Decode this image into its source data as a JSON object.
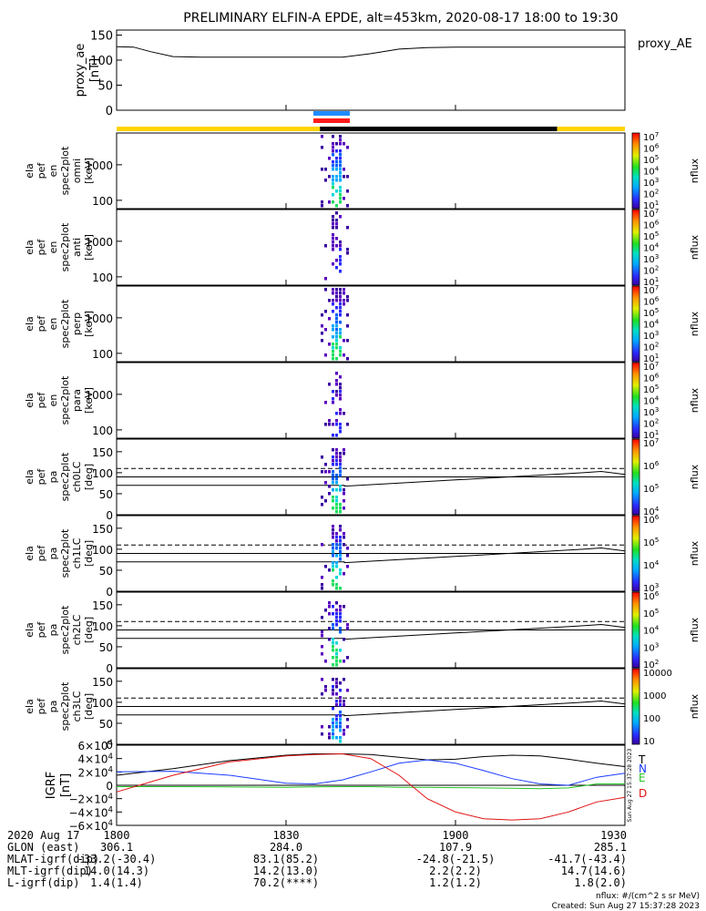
{
  "title": "PRELIMINARY ELFIN-A EPDE, alt=453km, 2020-08-17 18:00 to 19:30",
  "colors": {
    "day": "#ffd400",
    "night": "#000000",
    "blue_bar": "#1e8cff",
    "red_bar": "#ff1a1a",
    "T": "#000000",
    "N": "#1a3cff",
    "E": "#22c422",
    "D": "#e01010"
  },
  "colorbar_ticks": [
    [
      "10^7",
      "10^6",
      "10^5",
      "10^4",
      "10^3",
      "10^2",
      "10^1"
    ],
    [
      "10^7",
      "10^6",
      "10^5",
      "10^4",
      "10^3",
      "10^2",
      "10^1"
    ],
    [
      "10^7",
      "10^6",
      "10^5",
      "10^4",
      "10^3",
      "10^2",
      "10^1"
    ],
    [
      "10^7",
      "10^6",
      "10^5",
      "10^4",
      "10^3",
      "10^2",
      "10^1"
    ],
    [
      "10^7",
      "10^6",
      "10^5",
      "10^4"
    ],
    [
      "10^6",
      "10^5",
      "10^4",
      "10^3"
    ],
    [
      "10^6",
      "10^5",
      "10^4",
      "10^3",
      "10^2"
    ],
    [
      "10000",
      "1000",
      "100",
      "10"
    ]
  ],
  "colorbar_label": "nflux",
  "chart_data": [
    {
      "type": "line",
      "panel": "proxy_ae",
      "ylabel": [
        "proxy_ae",
        "[nT]"
      ],
      "legend": "proxy_AE",
      "yticks": [
        "150",
        "100",
        "50",
        "0"
      ],
      "ylim": [
        0,
        160
      ],
      "x_minutes": [
        0,
        3,
        6,
        10,
        15,
        30,
        40,
        45,
        50,
        55,
        60,
        70,
        80,
        90
      ],
      "values": [
        127,
        126,
        117,
        107,
        106,
        106,
        106,
        113,
        122,
        125,
        126,
        126,
        126,
        126
      ]
    },
    {
      "type": "heatmap",
      "panel": "omni",
      "ylabel": [
        "ela",
        "pef",
        "en",
        "spec2plot",
        "omni",
        "[keV]"
      ],
      "yticks": [
        "1000",
        "100"
      ],
      "scale": "log"
    },
    {
      "type": "heatmap",
      "panel": "anti",
      "ylabel": [
        "ela",
        "pef",
        "en",
        "spec2plot",
        "anti",
        "[keV]"
      ],
      "yticks": [
        "1000",
        "100"
      ],
      "scale": "log"
    },
    {
      "type": "heatmap",
      "panel": "perp",
      "ylabel": [
        "ela",
        "pef",
        "en",
        "spec2plot",
        "perp",
        "[keV]"
      ],
      "yticks": [
        "1000",
        "100"
      ],
      "scale": "log"
    },
    {
      "type": "heatmap",
      "panel": "para",
      "ylabel": [
        "ela",
        "pef",
        "en",
        "spec2plot",
        "para",
        "[keV]"
      ],
      "yticks": [
        "1000",
        "100"
      ],
      "scale": "log"
    },
    {
      "type": "heatmap",
      "panel": "ch0LC",
      "ylabel": [
        "ela",
        "pef",
        "pa",
        "spec2plot",
        "ch0LC",
        "[deg]"
      ],
      "yticks": [
        "150",
        "100",
        "50",
        "0"
      ],
      "ylim": [
        0,
        180
      ]
    },
    {
      "type": "heatmap",
      "panel": "ch1LC",
      "ylabel": [
        "ela",
        "pef",
        "pa",
        "spec2plot",
        "ch1LC",
        "[deg]"
      ],
      "yticks": [
        "150",
        "100",
        "50",
        "0"
      ],
      "ylim": [
        0,
        180
      ]
    },
    {
      "type": "heatmap",
      "panel": "ch2LC",
      "ylabel": [
        "ela",
        "pef",
        "pa",
        "spec2plot",
        "ch2LC",
        "[deg]"
      ],
      "yticks": [
        "150",
        "100",
        "50",
        "0"
      ],
      "ylim": [
        0,
        180
      ]
    },
    {
      "type": "heatmap",
      "panel": "ch3LC",
      "ylabel": [
        "ela",
        "pef",
        "pa",
        "spec2plot",
        "ch3LC",
        "[deg]"
      ],
      "yticks": [
        "150",
        "100",
        "50",
        "0"
      ],
      "ylim": [
        0,
        180
      ]
    },
    {
      "type": "line",
      "panel": "IGRF",
      "ylabel": [
        "IGRF",
        "[nT]"
      ],
      "yticks": [
        "6×10^4",
        "4×10^4",
        "2×10^4",
        "0",
        "−2×10^4",
        "−4×10^4",
        "−6×10^4"
      ],
      "ylim": [
        -60000,
        60000
      ],
      "side_note": "Sun Aug 27 15:37:28 2023",
      "x_minutes": [
        0,
        10,
        20,
        30,
        35,
        40,
        45,
        50,
        55,
        60,
        65,
        70,
        75,
        80,
        85,
        90
      ],
      "series": [
        {
          "name": "T",
          "values": [
            15000,
            25000,
            37000,
            45000,
            47000,
            47000,
            46000,
            42000,
            38000,
            39000,
            43000,
            45000,
            44000,
            39000,
            33000,
            28000
          ]
        },
        {
          "name": "N",
          "values": [
            20000,
            21000,
            15000,
            3000,
            2000,
            8000,
            20000,
            33000,
            38000,
            33000,
            22000,
            10000,
            2000,
            0,
            12000,
            18000
          ]
        },
        {
          "name": "E",
          "values": [
            -2000,
            -2000,
            -2500,
            -3000,
            -2500,
            -2000,
            -2000,
            -3000,
            -3000,
            -3500,
            -4000,
            -4500,
            -5000,
            -4000,
            2000,
            2000
          ]
        },
        {
          "name": "D",
          "values": [
            -10000,
            15000,
            35000,
            44000,
            46000,
            47000,
            40000,
            15000,
            -20000,
            -40000,
            -50000,
            -52000,
            -50000,
            -40000,
            -25000,
            -18000
          ]
        }
      ]
    }
  ],
  "x_axis": {
    "ticks_minutes": [
      0,
      30,
      60,
      90
    ],
    "rows": [
      {
        "label": "2020 Aug 17",
        "values": [
          "1800",
          "1830",
          "1900",
          "1930"
        ]
      },
      {
        "label": "GLON (east)",
        "values": [
          "306.1",
          "284.0",
          "107.9",
          "285.1"
        ]
      },
      {
        "label": "MLAT-igrf(dip)",
        "values": [
          "-33.2(-30.4)",
          "83.1(85.2)",
          "-24.8(-21.5)",
          "-41.7(-43.4)"
        ]
      },
      {
        "label": "MLT-igrf(dip)",
        "values": [
          "14.0(14.3)",
          "14.2(13.0)",
          "2.2(2.2)",
          "14.7(14.6)"
        ]
      },
      {
        "label": "L-igrf(dip)",
        "values": [
          "1.4(1.4)",
          "70.2(****)",
          "1.2(1.2)",
          "1.8(2.0)"
        ]
      }
    ]
  },
  "footer": [
    "nflux: #/(cm^2 s sr MeV)",
    "Created: Sun Aug 27 15:37:28 2023"
  ]
}
